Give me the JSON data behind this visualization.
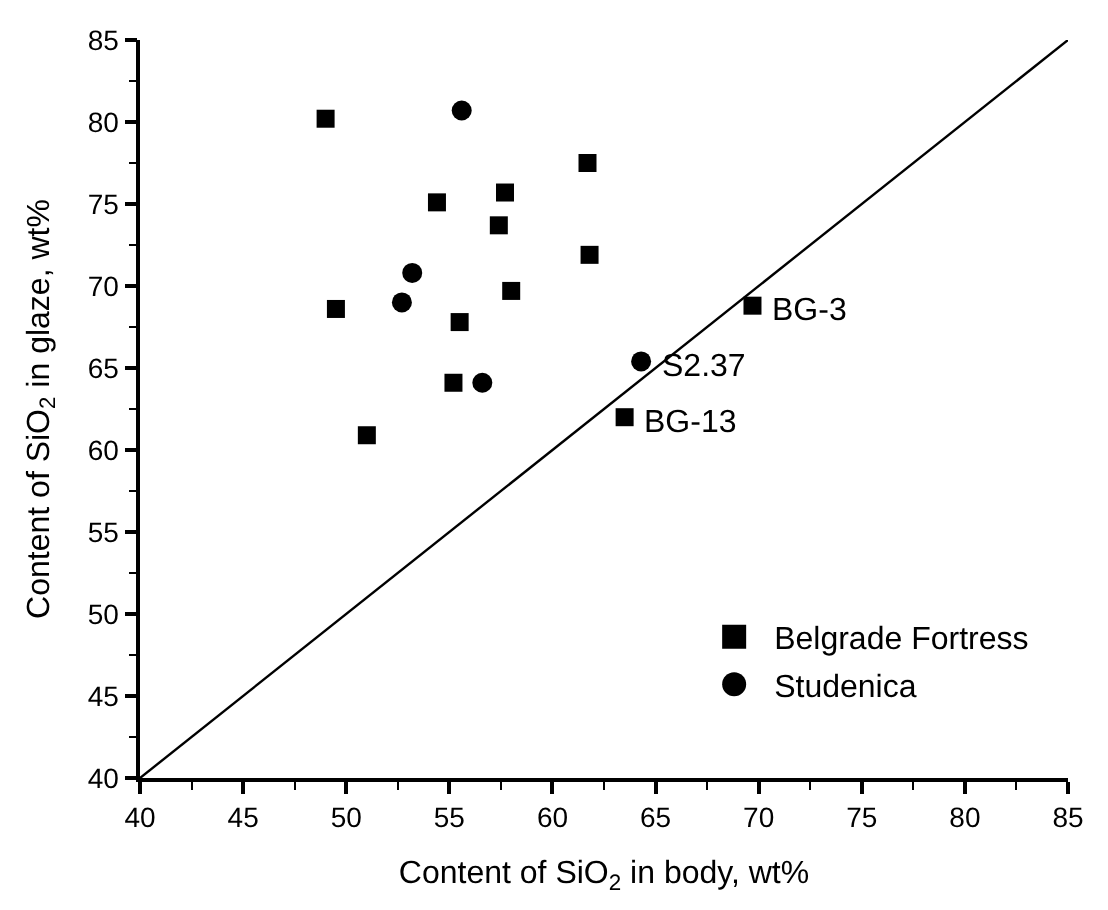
{
  "chart_data": {
    "type": "scatter",
    "xlabel": "Content of SiO$_{2}$ in body, wt%",
    "ylabel": "Content of SiO$_{2}$ in glaze, wt%",
    "xlim": [
      40,
      85
    ],
    "ylim": [
      40,
      85
    ],
    "xticks": [
      40,
      45,
      50,
      55,
      60,
      65,
      70,
      75,
      80,
      85
    ],
    "yticks": [
      40,
      45,
      50,
      55,
      60,
      65,
      70,
      75,
      80,
      85
    ],
    "legend": "bottom right",
    "series": [
      {
        "name": "Belgrade Fortress",
        "marker": "square",
        "color": "#000000",
        "x": [
          49.0,
          61.7,
          54.4,
          57.7,
          57.4,
          61.8,
          49.5,
          58.0,
          55.5,
          55.2,
          51.0,
          63.5,
          69.7
        ],
        "values": [
          80.2,
          77.5,
          75.1,
          75.7,
          73.7,
          71.9,
          68.6,
          69.7,
          67.8,
          64.1,
          60.9,
          62.0,
          68.8
        ]
      },
      {
        "name": "Studenica",
        "marker": "circle",
        "color": "#000000",
        "x": [
          55.6,
          53.2,
          52.7,
          56.6,
          64.3
        ],
        "values": [
          80.7,
          70.8,
          69.0,
          64.1,
          65.4
        ]
      },
      {
        "type": "line",
        "marker": "none",
        "color": "#000000",
        "x": [
          40,
          85
        ],
        "values": [
          40,
          85
        ]
      }
    ],
    "annotations": [
      {
        "text": "BG-3",
        "x": 69.7,
        "y": 68.8
      },
      {
        "text": "S2.37",
        "x": 64.3,
        "y": 65.4
      },
      {
        "text": "BG-13",
        "x": 63.5,
        "y": 62.0
      }
    ]
  }
}
